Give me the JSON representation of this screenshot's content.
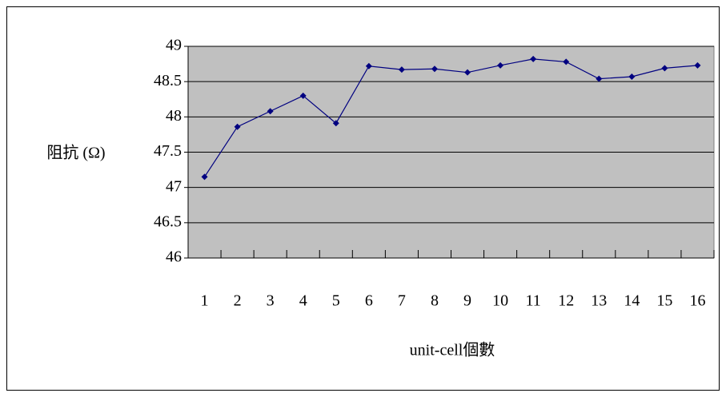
{
  "chart_data": {
    "type": "line",
    "y_label": "阻抗 (Ω)",
    "x_label": "unit-cell個數",
    "categories": [
      "1",
      "2",
      "3",
      "4",
      "5",
      "6",
      "7",
      "8",
      "9",
      "10",
      "11",
      "12",
      "13",
      "14",
      "15",
      "16"
    ],
    "series": [
      {
        "name": "阻抗",
        "color": "#000080",
        "values": [
          47.15,
          47.86,
          48.08,
          48.3,
          47.91,
          48.72,
          48.67,
          48.68,
          48.63,
          48.73,
          48.82,
          48.78,
          48.54,
          48.57,
          48.69,
          48.73
        ]
      }
    ],
    "ylim": [
      46,
      49
    ],
    "yticks": [
      46,
      46.5,
      47,
      47.5,
      48,
      48.5,
      49
    ],
    "grid": true
  }
}
